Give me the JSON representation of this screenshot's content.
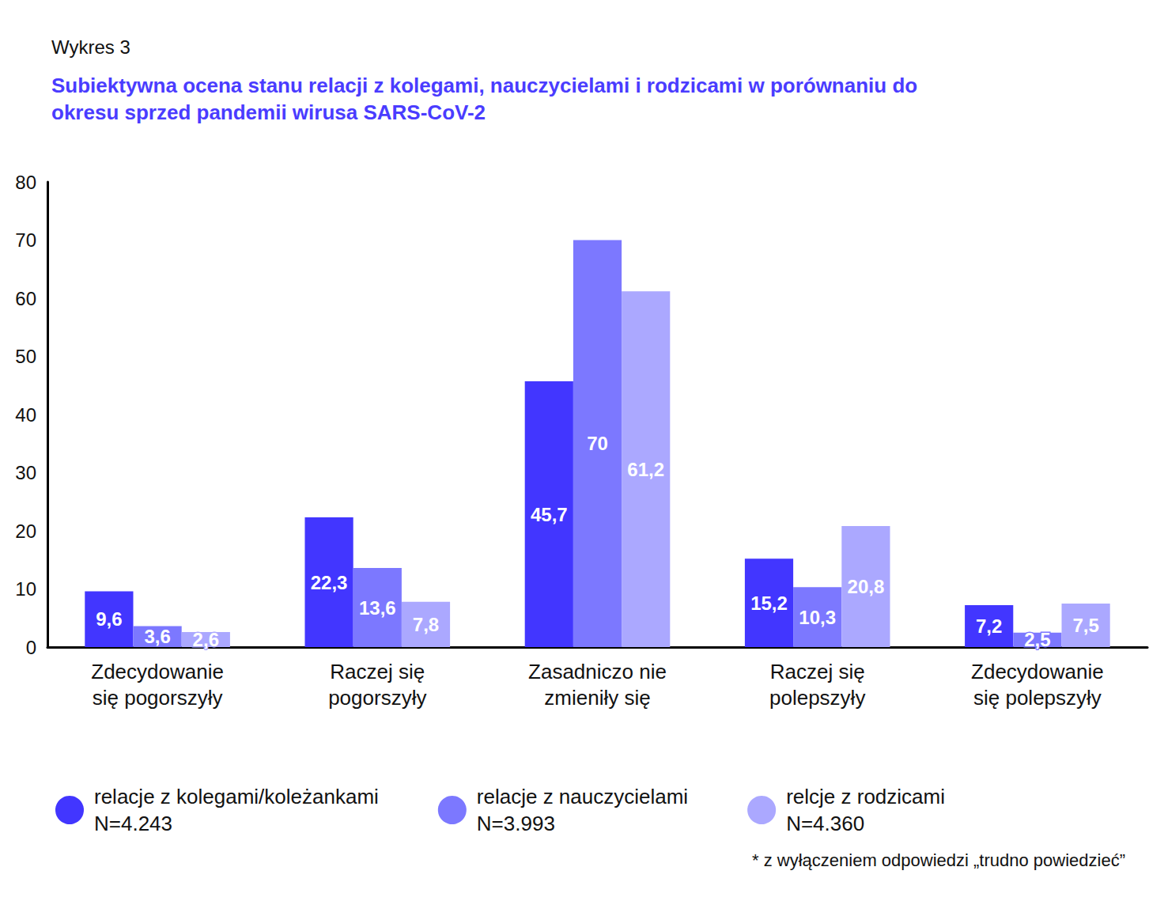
{
  "chart_data": {
    "type": "bar",
    "subtitle": "Wykres 3",
    "title": "Subiektywna ocena stanu relacji z kolegami, nauczycielami i rodzicami w porównaniu do\nokresu sprzed pandemii wirusa SARS-CoV-2",
    "categories": [
      "Zdecydowanie\nsię pogorszyły",
      "Raczej się\npogorszyły",
      "Zasadniczo nie\nzmieniły się",
      "Raczej się\npolepszyły",
      "Zdecydowanie\nsię polepszyły"
    ],
    "series": [
      {
        "name": "relacje z kolegami/koleżankami\nN=4.243",
        "color": "#4236ff",
        "values": [
          9.6,
          22.3,
          45.7,
          15.2,
          7.2
        ],
        "value_labels": [
          "9,6",
          "22,3",
          "45,7",
          "15,2",
          "7,2"
        ]
      },
      {
        "name": "relacje z nauczycielami\nN=3.993",
        "color": "#7c78ff",
        "values": [
          3.6,
          13.6,
          70,
          10.3,
          2.5
        ],
        "value_labels": [
          "3,6",
          "13,6",
          "70",
          "10,3",
          "2,5"
        ]
      },
      {
        "name": "relcje z rodzicami\nN=4.360",
        "color": "#aba8ff",
        "values": [
          2.6,
          7.8,
          61.2,
          20.8,
          7.5
        ],
        "value_labels": [
          "2,6",
          "7,8",
          "61,2",
          "20,8",
          "7,5"
        ]
      }
    ],
    "ylim": [
      0,
      80
    ],
    "yticks": [
      0,
      10,
      20,
      30,
      40,
      50,
      60,
      70,
      80
    ],
    "grid": false,
    "data_labels": true,
    "legend": "bottom",
    "annotations": [
      "* z wyłączeniem odpowiedzi „trudno powiedzieć”"
    ]
  }
}
